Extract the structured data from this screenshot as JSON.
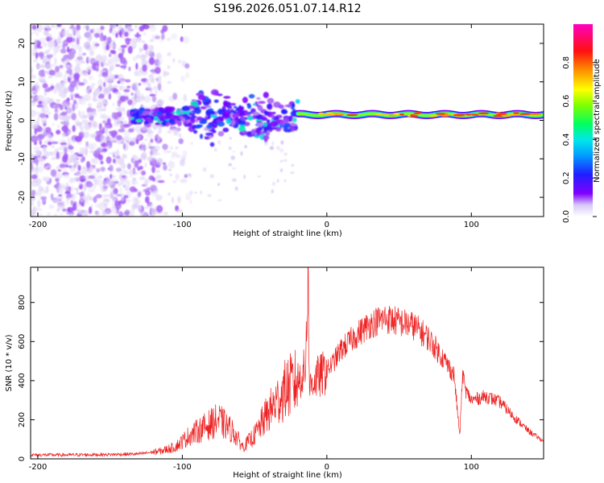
{
  "title": "S196.2026.051.07.14.R12",
  "chart_data": [
    {
      "type": "heatmap",
      "name": "spectrogram",
      "xlabel": "Height of straight line (km)",
      "ylabel": "Frequency (Hz)",
      "xlim": [
        -205,
        150
      ],
      "ylim": [
        -25,
        25
      ],
      "xticks": [
        -200,
        -100,
        0,
        100
      ],
      "yticks": [
        -20,
        -10,
        0,
        10,
        20
      ],
      "colorbar": {
        "label": "Normalized spectral amplitude",
        "range": [
          0,
          1
        ],
        "ticks": [
          "0.0",
          "0.2",
          "0.4",
          "0.6",
          "0.8"
        ],
        "colors": [
          "#ffffff",
          "#c8b4f0",
          "#8000ff",
          "#2020ff",
          "#00c8ff",
          "#00ff80",
          "#a0ff00",
          "#ffff00",
          "#ff8000",
          "#ff0000",
          "#ff00c0"
        ]
      },
      "features": [
        {
          "region": "noise",
          "x_range": [
            -205,
            -115
          ],
          "freq_range": [
            -25,
            25
          ],
          "amplitude": 0.1
        },
        {
          "region": "scattered_band",
          "x_range": [
            -135,
            -20
          ],
          "center_freq": 1,
          "spread_hz": 5,
          "amplitude": 0.25
        },
        {
          "region": "signal_line",
          "x_range": [
            -20,
            150
          ],
          "center_freq": 1.5,
          "amplitude": 0.85
        }
      ]
    },
    {
      "type": "line",
      "name": "snr",
      "xlabel": "Height of straight line (km)",
      "ylabel": "SNR (10 * v/v)",
      "xlim": [
        -205,
        150
      ],
      "ylim": [
        0,
        980
      ],
      "xticks": [
        -200,
        -100,
        0,
        100
      ],
      "yticks": [
        0,
        200,
        400,
        600,
        800
      ],
      "color": "#ee2222",
      "series": [
        {
          "name": "SNR envelope",
          "x": [
            -205,
            -180,
            -150,
            -130,
            -115,
            -105,
            -95,
            -85,
            -75,
            -65,
            -58,
            -50,
            -42,
            -35,
            -28,
            -20,
            -15,
            -13,
            -12,
            -10,
            -5,
            0,
            5,
            10,
            20,
            30,
            40,
            50,
            60,
            70,
            80,
            88,
            92,
            94,
            96,
            100,
            110,
            120,
            130,
            140,
            150
          ],
          "y": [
            20,
            20,
            22,
            25,
            40,
            60,
            120,
            160,
            200,
            140,
            60,
            120,
            220,
            290,
            360,
            400,
            450,
            960,
            350,
            400,
            420,
            450,
            500,
            560,
            630,
            690,
            720,
            700,
            680,
            620,
            520,
            430,
            120,
            440,
            350,
            300,
            320,
            290,
            210,
            140,
            90
          ]
        }
      ]
    }
  ]
}
